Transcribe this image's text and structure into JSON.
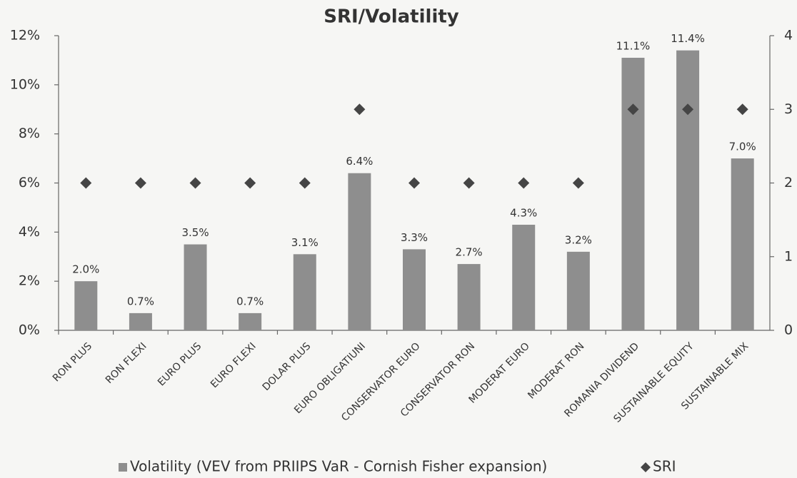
{
  "chart_data": {
    "type": "bar",
    "title": "SRI/Volatility",
    "categories": [
      "RON PLUS",
      "RON FLEXI",
      "EURO PLUS",
      "EURO FLEXI",
      "DOLAR PLUS",
      "EURO OBLIGATIUNI",
      "CONSERVATOR EURO",
      "CONSERVATOR RON",
      "MODERAT EURO",
      "MODERAT RON",
      "ROMANIA DIVIDEND",
      "SUSTAINABLE EQUITY",
      "SUSTAINABLE MIX"
    ],
    "series": [
      {
        "name": "Volatility (VEV from PRIIPS VaR - Cornish Fisher expansion)",
        "type": "bar",
        "color": "#8e8e8e",
        "values": [
          2.0,
          0.7,
          3.5,
          0.7,
          3.1,
          6.4,
          3.3,
          2.7,
          4.3,
          3.2,
          11.1,
          11.4,
          7.0
        ],
        "value_labels": [
          "2.0%",
          "0.7%",
          "3.5%",
          "0.7%",
          "3.1%",
          "6.4%",
          "3.3%",
          "2.7%",
          "4.3%",
          "3.2%",
          "11.1%",
          "11.4%",
          "7.0%"
        ]
      },
      {
        "name": "SRI",
        "type": "scatter",
        "axis": "y2",
        "color": "#454545",
        "values": [
          2,
          2,
          2,
          2,
          2,
          3,
          2,
          2,
          2,
          2,
          3,
          3,
          3
        ]
      }
    ],
    "ylim": [
      0,
      12
    ],
    "yticks": [
      {
        "value": 0,
        "label": "0%"
      },
      {
        "value": 2,
        "label": "2%"
      },
      {
        "value": 4,
        "label": "4%"
      },
      {
        "value": 6,
        "label": "6%"
      },
      {
        "value": 8,
        "label": "8%"
      },
      {
        "value": 10,
        "label": "10%"
      },
      {
        "value": 12,
        "label": "12%"
      }
    ],
    "y2lim": [
      0,
      4
    ],
    "y2ticks": [
      0,
      1,
      2,
      3,
      4
    ],
    "legend": "bottom"
  }
}
